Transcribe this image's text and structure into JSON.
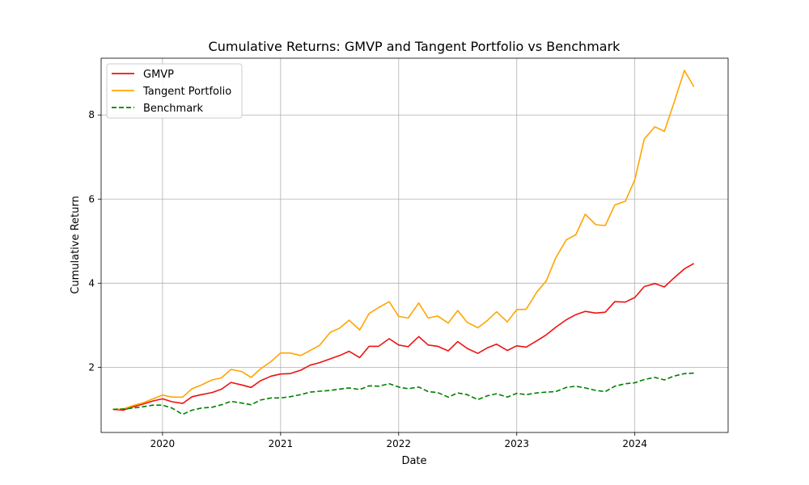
{
  "chart_data": {
    "type": "line",
    "title": "Cumulative Returns: GMVP and Tangent Portfolio vs Benchmark",
    "xlabel": "Date",
    "ylabel": "Cumulative Return",
    "xlim": [
      2019.48,
      2024.79
    ],
    "ylim": [
      0.45,
      9.35
    ],
    "x_ticks": [
      {
        "value": 2020,
        "label": "2020"
      },
      {
        "value": 2021,
        "label": "2021"
      },
      {
        "value": 2022,
        "label": "2022"
      },
      {
        "value": 2023,
        "label": "2023"
      },
      {
        "value": 2024,
        "label": "2024"
      }
    ],
    "y_ticks": [
      {
        "value": 2,
        "label": "2"
      },
      {
        "value": 4,
        "label": "4"
      },
      {
        "value": 6,
        "label": "6"
      },
      {
        "value": 8,
        "label": "8"
      }
    ],
    "grid": true,
    "legend_position": "upper left",
    "x": [
      2019.58,
      2019.67,
      2019.75,
      2019.83,
      2019.92,
      2020.0,
      2020.08,
      2020.17,
      2020.25,
      2020.33,
      2020.42,
      2020.5,
      2020.58,
      2020.67,
      2020.75,
      2020.83,
      2020.92,
      2021.0,
      2021.08,
      2021.17,
      2021.25,
      2021.33,
      2021.42,
      2021.5,
      2021.58,
      2021.67,
      2021.75,
      2021.83,
      2021.92,
      2022.0,
      2022.08,
      2022.17,
      2022.25,
      2022.33,
      2022.42,
      2022.5,
      2022.58,
      2022.67,
      2022.75,
      2022.83,
      2022.92,
      2023.0,
      2023.08,
      2023.17,
      2023.25,
      2023.33,
      2023.42,
      2023.5,
      2023.58,
      2023.67,
      2023.75,
      2023.83,
      2023.92,
      2024.0,
      2024.08,
      2024.17,
      2024.25,
      2024.33,
      2024.42,
      2024.5
    ],
    "series": [
      {
        "name": "GMVP",
        "color": "#ee1111",
        "dash": "solid",
        "values": [
          1.0,
          0.98,
          1.06,
          1.12,
          1.2,
          1.25,
          1.18,
          1.14,
          1.3,
          1.35,
          1.4,
          1.48,
          1.64,
          1.58,
          1.52,
          1.68,
          1.79,
          1.84,
          1.85,
          1.93,
          2.05,
          2.11,
          2.2,
          2.28,
          2.38,
          2.23,
          2.5,
          2.5,
          2.68,
          2.53,
          2.49,
          2.73,
          2.53,
          2.5,
          2.39,
          2.61,
          2.45,
          2.33,
          2.46,
          2.55,
          2.4,
          2.51,
          2.48,
          2.63,
          2.77,
          2.95,
          3.13,
          3.25,
          3.33,
          3.29,
          3.31,
          3.56,
          3.55,
          3.66,
          3.92,
          3.99,
          3.91,
          4.12,
          4.34,
          4.47
        ]
      },
      {
        "name": "Tangent Portfolio",
        "color": "#ffa500",
        "dash": "solid",
        "values": [
          1.0,
          1.01,
          1.09,
          1.15,
          1.25,
          1.34,
          1.29,
          1.29,
          1.49,
          1.58,
          1.7,
          1.75,
          1.95,
          1.9,
          1.76,
          1.96,
          2.14,
          2.34,
          2.34,
          2.28,
          2.4,
          2.52,
          2.83,
          2.93,
          3.12,
          2.89,
          3.28,
          3.42,
          3.56,
          3.21,
          3.17,
          3.53,
          3.17,
          3.22,
          3.05,
          3.35,
          3.07,
          2.94,
          3.11,
          3.32,
          3.08,
          3.37,
          3.38,
          3.79,
          4.05,
          4.6,
          5.03,
          5.15,
          5.64,
          5.39,
          5.37,
          5.86,
          5.95,
          6.46,
          7.43,
          7.72,
          7.61,
          8.28,
          9.06,
          8.67
        ]
      },
      {
        "name": "Benchmark",
        "color": "#008000",
        "dash": "dashed",
        "values": [
          1.0,
          1.01,
          1.03,
          1.06,
          1.1,
          1.1,
          1.03,
          0.88,
          0.98,
          1.03,
          1.05,
          1.11,
          1.19,
          1.15,
          1.11,
          1.22,
          1.27,
          1.27,
          1.3,
          1.35,
          1.41,
          1.43,
          1.45,
          1.48,
          1.51,
          1.47,
          1.56,
          1.55,
          1.61,
          1.53,
          1.49,
          1.53,
          1.42,
          1.4,
          1.29,
          1.39,
          1.35,
          1.23,
          1.32,
          1.37,
          1.29,
          1.38,
          1.35,
          1.39,
          1.41,
          1.42,
          1.52,
          1.55,
          1.51,
          1.45,
          1.42,
          1.55,
          1.61,
          1.63,
          1.71,
          1.76,
          1.7,
          1.79,
          1.85,
          1.86
        ]
      }
    ]
  }
}
